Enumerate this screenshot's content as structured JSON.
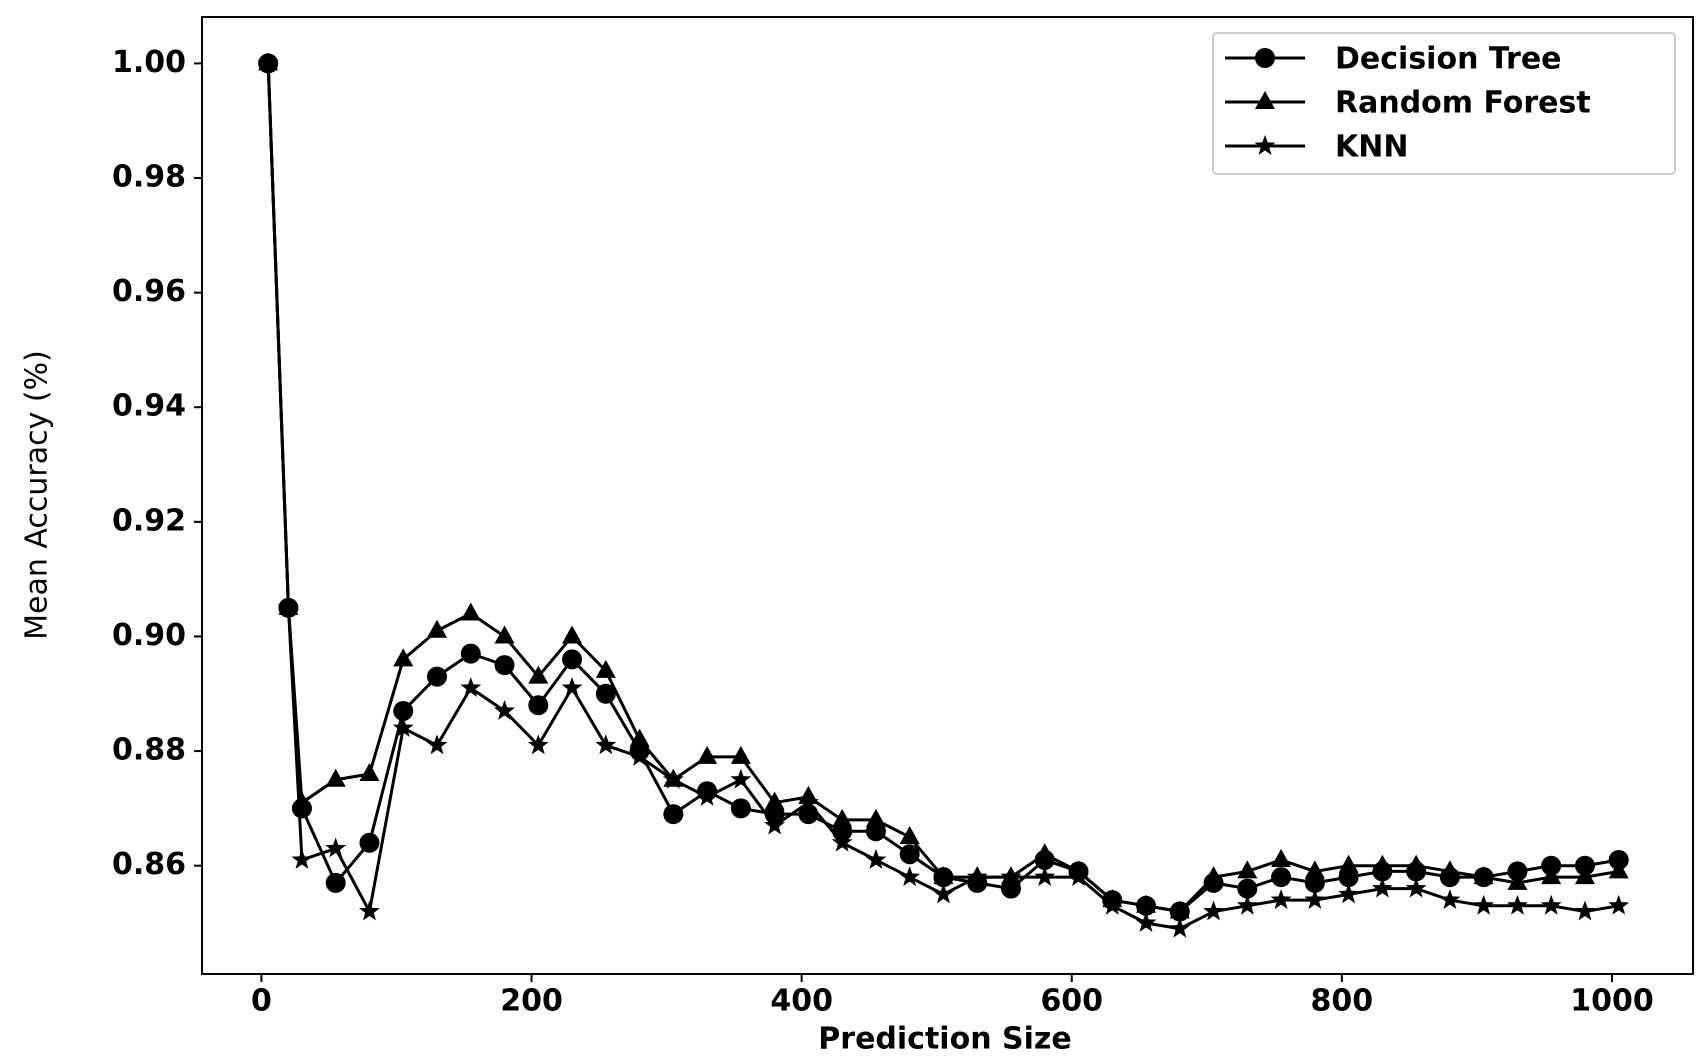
{
  "chart_data": {
    "type": "line",
    "xlabel": "Prediction Size",
    "ylabel": "Mean Accuracy (%)",
    "x": [
      5,
      20,
      30,
      55,
      80,
      105,
      130,
      155,
      180,
      205,
      230,
      255,
      280,
      305,
      330,
      355,
      380,
      405,
      430,
      455,
      480,
      505,
      530,
      555,
      580,
      605,
      630,
      655,
      680,
      705,
      730,
      755,
      780,
      805,
      830,
      855,
      880,
      905,
      930,
      955,
      980,
      1005
    ],
    "series": [
      {
        "name": "Decision Tree",
        "color": "#000000",
        "marker": "circle",
        "values": [
          1.0,
          0.905,
          0.87,
          0.857,
          0.864,
          0.887,
          0.893,
          0.897,
          0.895,
          0.888,
          0.896,
          0.89,
          0.88,
          0.869,
          0.873,
          0.87,
          0.869,
          0.869,
          0.866,
          0.866,
          0.862,
          0.858,
          0.857,
          0.856,
          0.861,
          0.859,
          0.854,
          0.853,
          0.852,
          0.857,
          0.856,
          0.858,
          0.857,
          0.858,
          0.859,
          0.859,
          0.858,
          0.858,
          0.859,
          0.86,
          0.86,
          0.861
        ]
      },
      {
        "name": "Random Forest",
        "color": "#000000",
        "marker": "triangle",
        "values": [
          1.0,
          0.905,
          0.871,
          0.875,
          0.876,
          0.896,
          0.901,
          0.904,
          0.9,
          0.893,
          0.9,
          0.894,
          0.882,
          0.875,
          0.879,
          0.879,
          0.871,
          0.872,
          0.868,
          0.868,
          0.865,
          0.858,
          0.858,
          0.858,
          0.862,
          0.859,
          0.854,
          0.853,
          0.852,
          0.858,
          0.859,
          0.861,
          0.859,
          0.86,
          0.86,
          0.86,
          0.859,
          0.858,
          0.857,
          0.858,
          0.858,
          0.859
        ]
      },
      {
        "name": "KNN",
        "color": "#000000",
        "marker": "star",
        "values": [
          1.0,
          0.905,
          0.861,
          0.863,
          0.852,
          0.884,
          0.881,
          0.891,
          0.887,
          0.881,
          0.891,
          0.881,
          0.879,
          0.875,
          0.872,
          0.875,
          0.867,
          0.871,
          0.864,
          0.861,
          0.858,
          0.855,
          0.858,
          0.858,
          0.858,
          0.858,
          0.853,
          0.85,
          0.849,
          0.852,
          0.853,
          0.854,
          0.854,
          0.855,
          0.856,
          0.856,
          0.854,
          0.853,
          0.853,
          0.853,
          0.852,
          0.853
        ]
      }
    ],
    "xlim": [
      -44,
      1060
    ],
    "xticks": [
      0,
      200,
      400,
      600,
      800,
      1000
    ],
    "ylim": [
      0.8411,
      1.0081
    ],
    "yticks": [
      {
        "value": 0.86,
        "label": "0.86"
      },
      {
        "value": 0.88,
        "label": "0.88"
      },
      {
        "value": 0.9,
        "label": "0.90"
      },
      {
        "value": 0.92,
        "label": "0.92"
      },
      {
        "value": 0.94,
        "label": "0.94"
      },
      {
        "value": 0.96,
        "label": "0.96"
      },
      {
        "value": 0.98,
        "label": "0.98"
      },
      {
        "value": 1.0,
        "label": "1.00"
      }
    ],
    "grid": false,
    "legend": "upper right"
  }
}
